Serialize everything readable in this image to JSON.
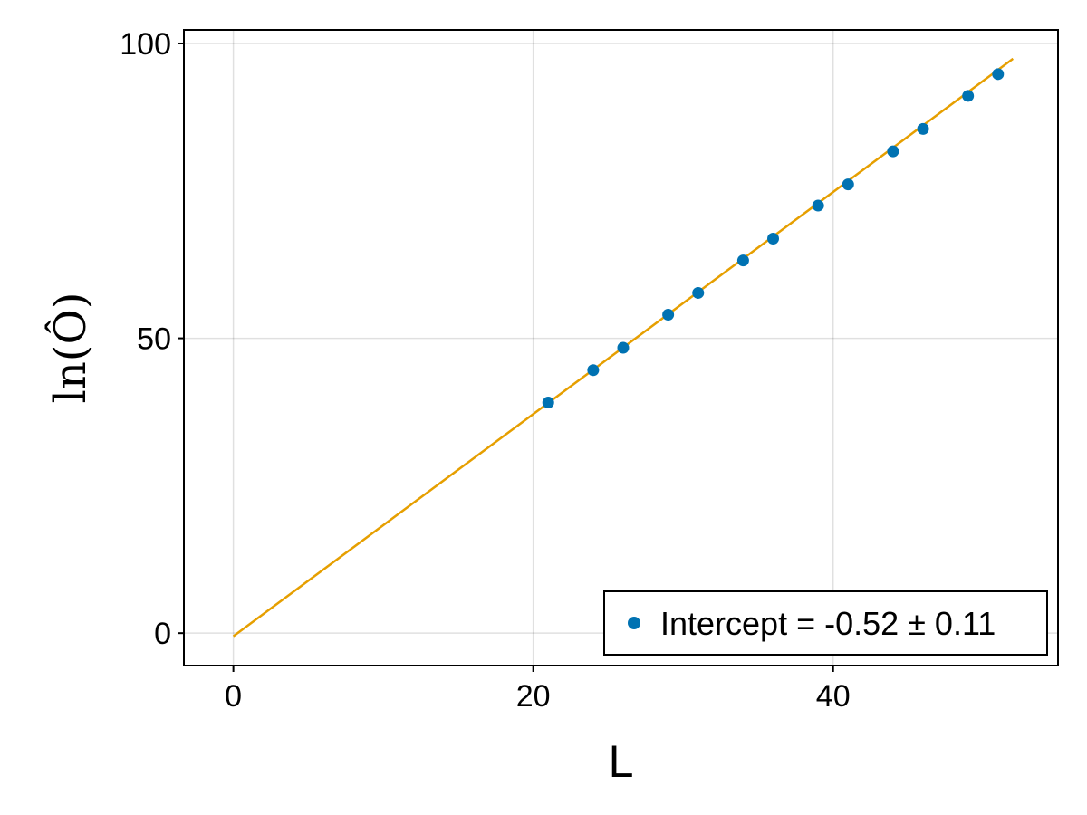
{
  "chart_data": {
    "type": "scatter",
    "title": "",
    "xlabel": "L",
    "ylabel": "ln(Ô)",
    "xlim": [
      -3.3,
      55.0
    ],
    "ylim": [
      -5.5,
      102.3
    ],
    "xticks": [
      0,
      20,
      40
    ],
    "yticks": [
      0,
      50,
      100
    ],
    "x_tick_labels": [
      "0",
      "20",
      "40"
    ],
    "y_tick_labels": [
      "0",
      "50",
      "100"
    ],
    "grid": true,
    "legend_position": "bottom-right",
    "series": [
      {
        "name": "Intercept = -0.52 ± 0.11",
        "kind": "scatter",
        "color": "#0072b2",
        "x": [
          21,
          24,
          26,
          29,
          31,
          34,
          36,
          39,
          41,
          44,
          46,
          49,
          51
        ],
        "y": [
          39.1,
          44.6,
          48.4,
          54.0,
          57.7,
          63.2,
          66.9,
          72.5,
          76.1,
          81.7,
          85.5,
          91.1,
          94.8
        ]
      },
      {
        "kind": "line",
        "color": "#e69f00",
        "x": [
          0,
          52
        ],
        "y": [
          -0.52,
          97.4
        ]
      }
    ]
  }
}
